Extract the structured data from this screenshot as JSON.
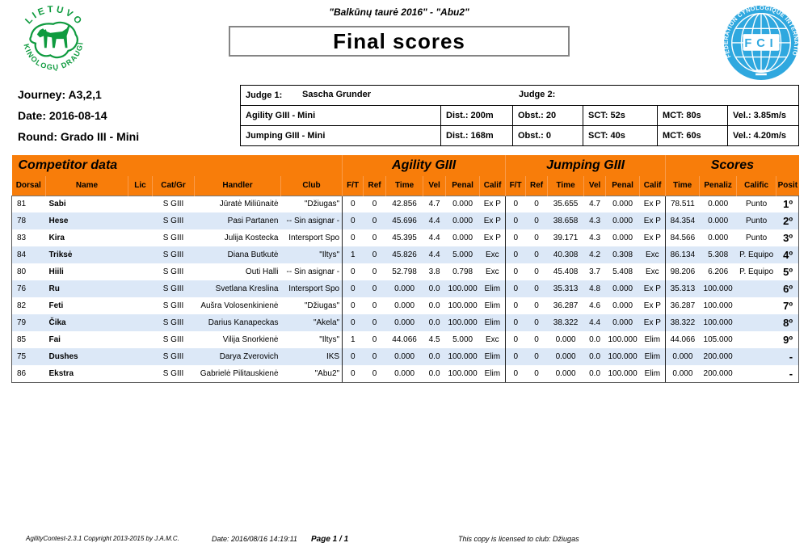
{
  "page": {
    "event_title": "\"Balkūnų taurė 2016\" - \"Abu2\"",
    "report_title": "Final scores"
  },
  "logos": {
    "lkd": {
      "top_text": "LIETUVOS",
      "bottom_text": "KINOLOGŲ DRAUGIJA",
      "color": "#0F9B3F"
    },
    "fci": {
      "ring_text": "FÉDÉRATION CYNOLOGIQUE INTERNATIONALE",
      "center_text": "FCI",
      "color": "#2FA8DF"
    }
  },
  "info": {
    "journey": "Journey: A3,2,1",
    "date": "Date: 2016-08-14",
    "round": "Round: Grado III - Mini"
  },
  "judges": {
    "judge1_label": "Judge 1:",
    "judge1_name": "Sascha Grunder",
    "judge2_label": "Judge 2:",
    "rounds": [
      [
        "Agility GIII - Mini",
        "Dist.: 200m",
        "Obst.: 20",
        "SCT: 52s",
        "MCT: 80s",
        "Vel.: 3.85m/s"
      ],
      [
        "Jumping GIII - Mini",
        "Dist.: 168m",
        "Obst.: 0",
        "SCT: 40s",
        "MCT: 60s",
        "Vel.: 4.20m/s"
      ]
    ]
  },
  "results": {
    "groups": [
      "Competitor data",
      "Agility GIII",
      "Jumping GIII",
      "Scores"
    ],
    "columns": [
      "Dorsal",
      "Name",
      "Lic",
      "Cat/Gr",
      "Handler",
      "Club",
      "F/T",
      "Ref",
      "Time",
      "Vel",
      "Penal",
      "Calif",
      "F/T",
      "Ref",
      "Time",
      "Vel",
      "Penal",
      "Calif",
      "Time",
      "Penaliz",
      "Calific",
      "Posit"
    ],
    "rows": [
      [
        "81",
        "Sabi",
        "",
        "S GIII",
        "Jūratė Miliūnaitė",
        "\"Džiugas\"",
        "0",
        "0",
        "42.856",
        "4.7",
        "0.000",
        "Ex P",
        "0",
        "0",
        "35.655",
        "4.7",
        "0.000",
        "Ex P",
        "78.511",
        "0.000",
        "Punto",
        "1º"
      ],
      [
        "78",
        "Hese",
        "",
        "S GIII",
        "Pasi Partanen",
        "-- Sin asignar -",
        "0",
        "0",
        "45.696",
        "4.4",
        "0.000",
        "Ex P",
        "0",
        "0",
        "38.658",
        "4.3",
        "0.000",
        "Ex P",
        "84.354",
        "0.000",
        "Punto",
        "2º"
      ],
      [
        "83",
        "Kira",
        "",
        "S GIII",
        "Julija Kostecka",
        "Intersport Spo",
        "0",
        "0",
        "45.395",
        "4.4",
        "0.000",
        "Ex P",
        "0",
        "0",
        "39.171",
        "4.3",
        "0.000",
        "Ex P",
        "84.566",
        "0.000",
        "Punto",
        "3º"
      ],
      [
        "84",
        "Triksė",
        "",
        "S GIII",
        "Diana Butkutė",
        "\"Iltys\"",
        "1",
        "0",
        "45.826",
        "4.4",
        "5.000",
        "Exc",
        "0",
        "0",
        "40.308",
        "4.2",
        "0.308",
        "Exc",
        "86.134",
        "5.308",
        "P. Equipo",
        "4º"
      ],
      [
        "80",
        "Hiili",
        "",
        "S GIII",
        "Outi Halli",
        "-- Sin asignar -",
        "0",
        "0",
        "52.798",
        "3.8",
        "0.798",
        "Exc",
        "0",
        "0",
        "45.408",
        "3.7",
        "5.408",
        "Exc",
        "98.206",
        "6.206",
        "P. Equipo",
        "5º"
      ],
      [
        "76",
        "Ru",
        "",
        "S GIII",
        "Svetlana Kreslina",
        "Intersport Spo",
        "0",
        "0",
        "0.000",
        "0.0",
        "100.000",
        "Elim",
        "0",
        "0",
        "35.313",
        "4.8",
        "0.000",
        "Ex P",
        "35.313",
        "100.000",
        "",
        "6º"
      ],
      [
        "82",
        "Feti",
        "",
        "S GIII",
        "Aušra Volosenkinienė",
        "\"Džiugas\"",
        "0",
        "0",
        "0.000",
        "0.0",
        "100.000",
        "Elim",
        "0",
        "0",
        "36.287",
        "4.6",
        "0.000",
        "Ex P",
        "36.287",
        "100.000",
        "",
        "7º"
      ],
      [
        "79",
        "Čika",
        "",
        "S GIII",
        "Darius Kanapeckas",
        "\"Akela\"",
        "0",
        "0",
        "0.000",
        "0.0",
        "100.000",
        "Elim",
        "0",
        "0",
        "38.322",
        "4.4",
        "0.000",
        "Ex P",
        "38.322",
        "100.000",
        "",
        "8º"
      ],
      [
        "85",
        "Fai",
        "",
        "S GIII",
        "Vilija Snorkienė",
        "\"Iltys\"",
        "1",
        "0",
        "44.066",
        "4.5",
        "5.000",
        "Exc",
        "0",
        "0",
        "0.000",
        "0.0",
        "100.000",
        "Elim",
        "44.066",
        "105.000",
        "",
        "9º"
      ],
      [
        "75",
        "Dushes",
        "",
        "S GIII",
        "Darya Zverovich",
        "IKS",
        "0",
        "0",
        "0.000",
        "0.0",
        "100.000",
        "Elim",
        "0",
        "0",
        "0.000",
        "0.0",
        "100.000",
        "Elim",
        "0.000",
        "200.000",
        "",
        "-"
      ],
      [
        "86",
        "Ekstra",
        "",
        "S GIII",
        "Gabrielė Pilitauskienė",
        "\"Abu2\"",
        "0",
        "0",
        "0.000",
        "0.0",
        "100.000",
        "Elim",
        "0",
        "0",
        "0.000",
        "0.0",
        "100.000",
        "Elim",
        "0.000",
        "200.000",
        "",
        "-"
      ]
    ]
  },
  "footer": {
    "copyright": "AgilityContest-2.3.1 Copyright 2013-2015 by J.A.M.C.",
    "print_date": "Date: 2016/08/16 14:19:11",
    "page": "Page 1 / 1",
    "license": "This copy is licensed to club: Džiugas"
  },
  "colors": {
    "header_orange": "#F87D0A",
    "row_alt_blue": "#DCE8F7",
    "lkd_green": "#0F9B3F",
    "fci_blue": "#2FA8DF"
  }
}
